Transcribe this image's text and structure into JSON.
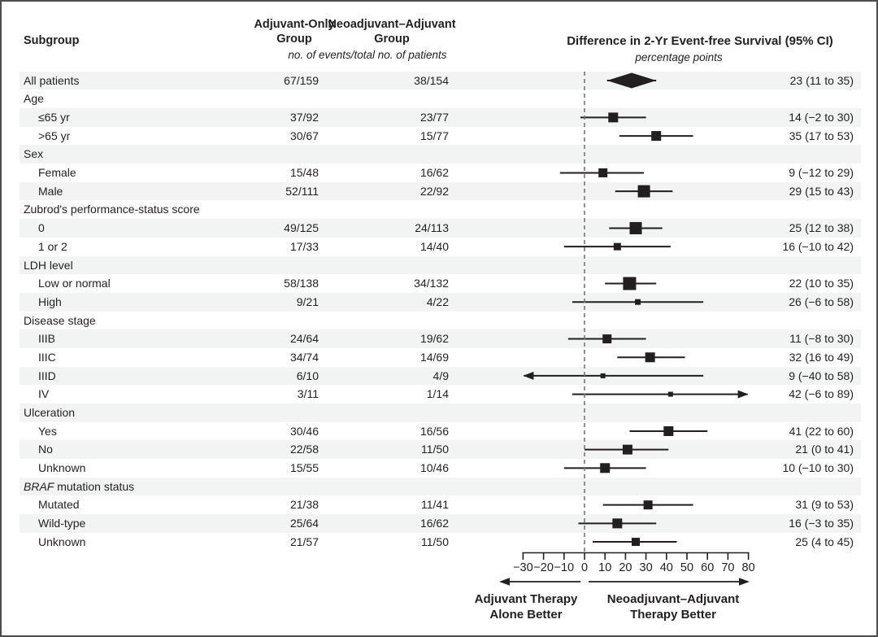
{
  "header": {
    "subgroup": "Subgroup",
    "adjuvant_line1": "Adjuvant-Only",
    "adjuvant_line2": "Group",
    "neoadjuvant_line1": "Neoadjuvant–Adjuvant",
    "neoadjuvant_line2": "Group",
    "events_note": "no. of events/total no. of patients",
    "plot_title": "Difference in 2-Yr Event-free Survival (95% CI)",
    "plot_units": "percentage points"
  },
  "footer": {
    "left_label_line1": "Adjuvant Therapy",
    "left_label_line2": "Alone Better",
    "right_label_line1": "Neoadjuvant–Adjuvant",
    "right_label_line2": "Therapy Better"
  },
  "colors": {
    "text": "#231f20",
    "stripe": "#f2f3f3",
    "marker": "#231f20",
    "zero_line": "#77787b",
    "frame": "#4d4d4f"
  },
  "chart_data": {
    "type": "forest",
    "title": "Difference in 2-Yr Event-free Survival (95% CI)",
    "units": "percentage points",
    "xlim": [
      -30,
      80
    ],
    "zero_line": 0,
    "tick_values": [
      -30,
      -20,
      -10,
      0,
      10,
      20,
      30,
      40,
      50,
      60,
      70,
      80
    ],
    "tick_labels": [
      "−30",
      "−20",
      "−10",
      "0",
      "10",
      "20",
      "30",
      "40",
      "50",
      "60",
      "70",
      "80"
    ],
    "rows": [
      {
        "kind": "overall",
        "label": "All patients",
        "adjuvant": "67/159",
        "neoadjuvant": "38/154",
        "estimate": 23,
        "ci_low": 11,
        "ci_high": 35,
        "ci_text": "23 (11 to 35)",
        "marker": "diamond"
      },
      {
        "kind": "group",
        "label": "Age"
      },
      {
        "kind": "item",
        "label": "≤65 yr",
        "adjuvant": "37/92",
        "neoadjuvant": "23/77",
        "estimate": 14,
        "ci_low": -2,
        "ci_high": 30,
        "ci_text": "14 (−2 to 30)",
        "marker_size": 12
      },
      {
        "kind": "item",
        "label": ">65 yr",
        "adjuvant": "30/67",
        "neoadjuvant": "15/77",
        "estimate": 35,
        "ci_low": 17,
        "ci_high": 53,
        "ci_text": "35 (17 to 53)",
        "marker_size": 12
      },
      {
        "kind": "group",
        "label": "Sex"
      },
      {
        "kind": "item",
        "label": "Female",
        "adjuvant": "15/48",
        "neoadjuvant": "16/62",
        "estimate": 9,
        "ci_low": -12,
        "ci_high": 29,
        "ci_text": "9 (−12 to 29)",
        "marker_size": 11
      },
      {
        "kind": "item",
        "label": "Male",
        "adjuvant": "52/111",
        "neoadjuvant": "22/92",
        "estimate": 29,
        "ci_low": 15,
        "ci_high": 43,
        "ci_text": "29 (15 to 43)",
        "marker_size": 15
      },
      {
        "kind": "group",
        "label": "Zubrod's performance-status score"
      },
      {
        "kind": "item",
        "label": "0",
        "adjuvant": "49/125",
        "neoadjuvant": "24/113",
        "estimate": 25,
        "ci_low": 12,
        "ci_high": 38,
        "ci_text": "25 (12 to 38)",
        "marker_size": 15
      },
      {
        "kind": "item",
        "label": "1 or 2",
        "adjuvant": "17/33",
        "neoadjuvant": "14/40",
        "estimate": 16,
        "ci_low": -10,
        "ci_high": 42,
        "ci_text": "16 (−10 to 42)",
        "marker_size": 9
      },
      {
        "kind": "group",
        "label": "LDH level"
      },
      {
        "kind": "item",
        "label": "Low or normal",
        "adjuvant": "58/138",
        "neoadjuvant": "34/132",
        "estimate": 22,
        "ci_low": 10,
        "ci_high": 35,
        "ci_text": "22 (10 to 35)",
        "marker_size": 16
      },
      {
        "kind": "item",
        "label": "High",
        "adjuvant": "9/21",
        "neoadjuvant": "4/22",
        "estimate": 26,
        "ci_low": -6,
        "ci_high": 58,
        "ci_text": "26 (−6 to 58)",
        "marker_size": 7
      },
      {
        "kind": "group",
        "label": "Disease stage"
      },
      {
        "kind": "item",
        "label": "IIIB",
        "adjuvant": "24/64",
        "neoadjuvant": "19/62",
        "estimate": 11,
        "ci_low": -8,
        "ci_high": 30,
        "ci_text": "11 (−8 to 30)",
        "marker_size": 11
      },
      {
        "kind": "item",
        "label": "IIIC",
        "adjuvant": "34/74",
        "neoadjuvant": "14/69",
        "estimate": 32,
        "ci_low": 16,
        "ci_high": 49,
        "ci_text": "32 (16 to 49)",
        "marker_size": 12
      },
      {
        "kind": "item",
        "label": "IIID",
        "adjuvant": "6/10",
        "neoadjuvant": "4/9",
        "estimate": 9,
        "ci_low": -40,
        "ci_high": 58,
        "ci_text": "9 (−40 to 58)",
        "marker_size": 6,
        "arrow_low": true
      },
      {
        "kind": "item",
        "label": "IV",
        "adjuvant": "3/11",
        "neoadjuvant": "1/14",
        "estimate": 42,
        "ci_low": -6,
        "ci_high": 89,
        "ci_text": "42 (−6 to 89)",
        "marker_size": 6,
        "arrow_high": true
      },
      {
        "kind": "group",
        "label": "Ulceration"
      },
      {
        "kind": "item",
        "label": "Yes",
        "adjuvant": "30/46",
        "neoadjuvant": "16/56",
        "estimate": 41,
        "ci_low": 22,
        "ci_high": 60,
        "ci_text": "41 (22 to 60)",
        "marker_size": 12
      },
      {
        "kind": "item",
        "label": "No",
        "adjuvant": "22/58",
        "neoadjuvant": "11/50",
        "estimate": 21,
        "ci_low": 0,
        "ci_high": 41,
        "ci_text": "21 (0 to 41)",
        "marker_size": 12
      },
      {
        "kind": "item",
        "label": "Unknown",
        "adjuvant": "15/55",
        "neoadjuvant": "10/46",
        "estimate": 10,
        "ci_low": -10,
        "ci_high": 30,
        "ci_text": "10 (−10 to 30)",
        "marker_size": 12
      },
      {
        "kind": "group",
        "label_italic": "BRAF",
        "label": " mutation status"
      },
      {
        "kind": "item",
        "label": "Mutated",
        "adjuvant": "21/38",
        "neoadjuvant": "11/41",
        "estimate": 31,
        "ci_low": 9,
        "ci_high": 53,
        "ci_text": "31 (9 to 53)",
        "marker_size": 11
      },
      {
        "kind": "item",
        "label": "Wild-type",
        "adjuvant": "25/64",
        "neoadjuvant": "16/62",
        "estimate": 16,
        "ci_low": -3,
        "ci_high": 35,
        "ci_text": "16 (−3 to 35)",
        "marker_size": 12
      },
      {
        "kind": "item",
        "label": "Unknown",
        "adjuvant": "21/57",
        "neoadjuvant": "11/50",
        "estimate": 25,
        "ci_low": 4,
        "ci_high": 45,
        "ci_text": "25 (4 to 45)",
        "marker_size": 10
      }
    ],
    "legend_position": "none",
    "grid": false
  }
}
